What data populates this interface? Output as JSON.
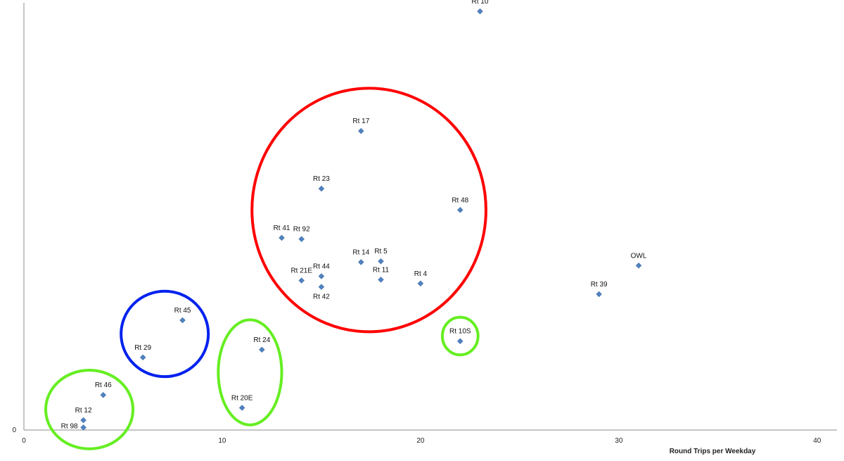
{
  "chart_data": {
    "type": "scatter",
    "xlabel": "Round Trips per Weekday",
    "ylabel": "",
    "xlim": [
      0,
      41
    ],
    "ylim": [
      0,
      100
    ],
    "x_ticks": [
      "0",
      "10",
      "20",
      "30",
      "40"
    ],
    "x_tick_values": [
      0,
      10,
      20,
      30,
      40
    ],
    "y_ticks": [
      "0"
    ],
    "y_tick_values": [
      0
    ],
    "grid": false,
    "marker": "diamond",
    "marker_color": "#4f81bd",
    "points": [
      {
        "label": "Rt 10",
        "x": 23,
        "y": 98
      },
      {
        "label": "Rt 17",
        "x": 17,
        "y": 70
      },
      {
        "label": "Rt 23",
        "x": 15,
        "y": 56.5
      },
      {
        "label": "Rt 48",
        "x": 22,
        "y": 51.5
      },
      {
        "label": "Rt 41",
        "x": 13,
        "y": 45
      },
      {
        "label": "Rt 92",
        "x": 14,
        "y": 44.7
      },
      {
        "label": "Rt 14",
        "x": 17,
        "y": 39.3
      },
      {
        "label": "Rt 5",
        "x": 18,
        "y": 39.5
      },
      {
        "label": "Rt 21E",
        "x": 14,
        "y": 35
      },
      {
        "label": "Rt 44",
        "x": 15,
        "y": 36
      },
      {
        "label": "Rt 11",
        "x": 18,
        "y": 35.2
      },
      {
        "label": "Rt 4",
        "x": 20,
        "y": 34.3
      },
      {
        "label": "Rt 42",
        "x": 15,
        "y": 33.5
      },
      {
        "label": "OWL",
        "x": 31,
        "y": 38.5
      },
      {
        "label": "Rt 39",
        "x": 29,
        "y": 31.8
      },
      {
        "label": "Rt 45",
        "x": 8,
        "y": 25.7
      },
      {
        "label": "Rt 10S",
        "x": 22,
        "y": 20.8
      },
      {
        "label": "Rt 24",
        "x": 12,
        "y": 18.8
      },
      {
        "label": "Rt 29",
        "x": 6,
        "y": 17
      },
      {
        "label": "Rt 46",
        "x": 4,
        "y": 8.2
      },
      {
        "label": "Rt 20E",
        "x": 11,
        "y": 5.2
      },
      {
        "label": "Rt 12",
        "x": 3,
        "y": 2.3
      },
      {
        "label": "Rt 98",
        "x": 3,
        "y": 0.6
      }
    ],
    "annotations": [
      {
        "shape": "ellipse",
        "color": "#ff0000",
        "cx": 17.4,
        "cy": 51.5,
        "rx": 5.9,
        "ry": 28.5
      },
      {
        "shape": "ellipse",
        "color": "#0022ee",
        "cx": 7.1,
        "cy": 22.5,
        "rx": 2.2,
        "ry": 10
      },
      {
        "shape": "ellipse",
        "color": "#66ee22",
        "cx": 11.4,
        "cy": 13.5,
        "rx": 1.6,
        "ry": 12.3
      },
      {
        "shape": "ellipse",
        "color": "#66ee22",
        "cx": 22.0,
        "cy": 22.0,
        "rx": 0.9,
        "ry": 4.4
      },
      {
        "shape": "ellipse",
        "color": "#66ee22",
        "cx": 3.3,
        "cy": 4.8,
        "rx": 2.2,
        "ry": 9.2
      }
    ]
  }
}
